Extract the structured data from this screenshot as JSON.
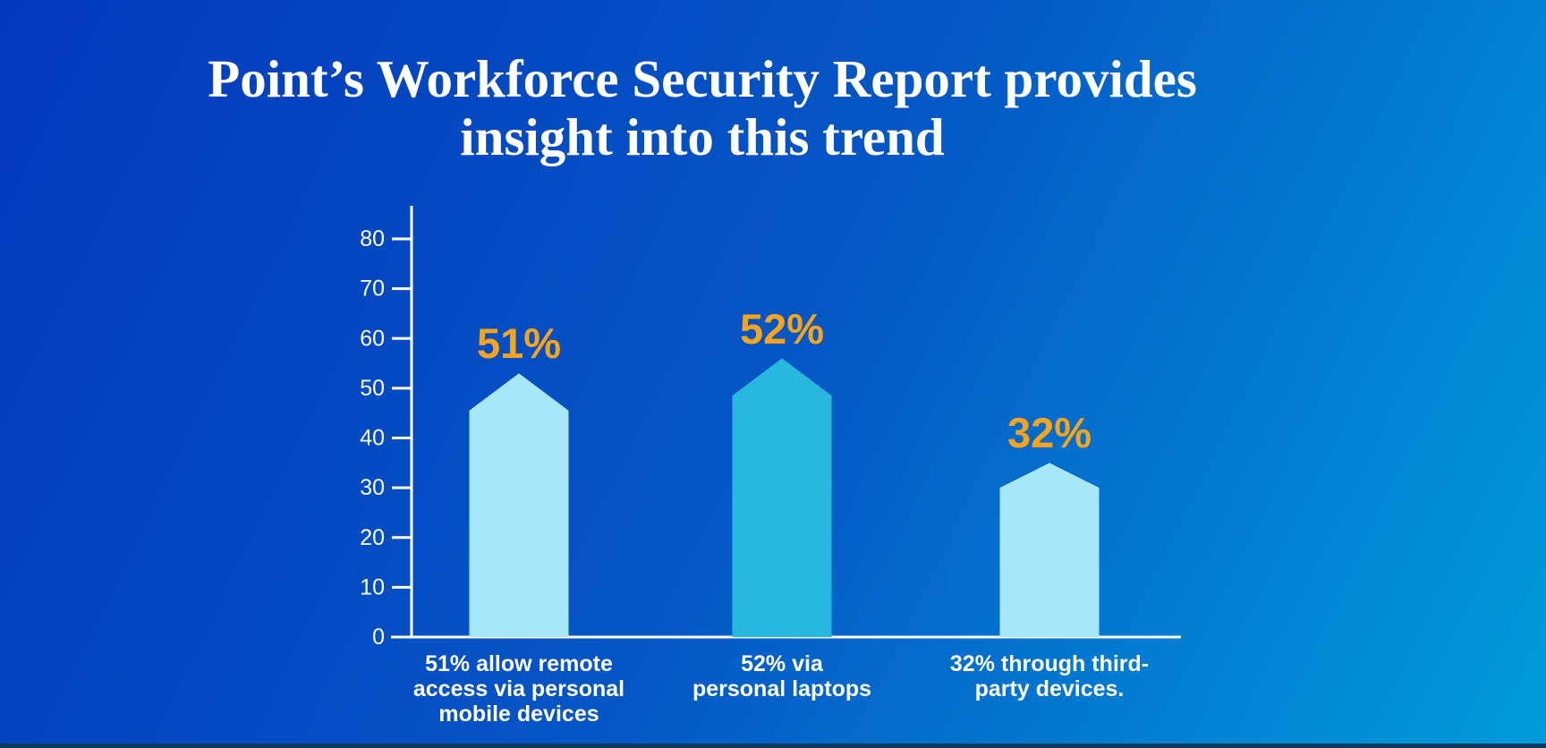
{
  "title": {
    "lines": [
      "Point’s Workforce Security Report provides",
      "insight into this trend"
    ],
    "color": "#FFFFFF"
  },
  "colors": {
    "background_top_left": "#0338BD",
    "background_mid": "#0556C5",
    "background_bottom_right": "#009CDA",
    "bottom_strip": "#0E3A5C",
    "axis": "#FFFFFF",
    "tick_label": "#FFFFFF",
    "percent_label": "#F6A41D",
    "bar_light": "#A8E6FA",
    "bar_dark": "#29B8DD",
    "category_label": "#FFFFFF"
  },
  "chart_data": {
    "type": "bar",
    "title": "Point’s Workforce Security Report provides insight into this trend",
    "xlabel": "",
    "ylabel": "",
    "ylim": [
      0,
      86
    ],
    "y_ticks": [
      0,
      10,
      20,
      30,
      40,
      50,
      60,
      70,
      80
    ],
    "grid": false,
    "legend": false,
    "categories": [
      "51% allow remote access via personal mobile devices",
      "52% via personal laptops",
      "32% through third-party devices."
    ],
    "values": [
      51,
      52,
      32
    ],
    "bars": [
      {
        "display": "51%",
        "value": 51,
        "peak_top": 53,
        "peak_shoulder": 45.5,
        "color_key": "bar_light",
        "label_lines": [
          "51% allow remote",
          "access via personal",
          "mobile devices"
        ]
      },
      {
        "display": "52%",
        "value": 52,
        "peak_top": 56,
        "peak_shoulder": 48.5,
        "color_key": "bar_dark",
        "label_lines": [
          "52% via",
          "personal laptops"
        ]
      },
      {
        "display": "32%",
        "value": 32,
        "peak_top": 35,
        "peak_shoulder": 30,
        "color_key": "bar_light",
        "label_lines": [
          "32% through third-",
          "party devices."
        ]
      }
    ]
  }
}
